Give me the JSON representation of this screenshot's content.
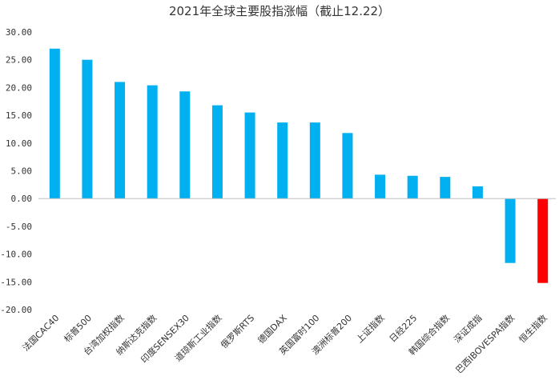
{
  "chart_data": {
    "type": "bar",
    "title": "2021年全球主要股指涨幅（截止12.22）",
    "categories": [
      "法国CAC40",
      "标普500",
      "台湾加权指数",
      "纳斯达克指数",
      "印度SENSEX30",
      "道琼斯工业指数",
      "俄罗斯RTS",
      "德国DAX",
      "英国富时100",
      "澳洲标普200",
      "上证指数",
      "日经225",
      "韩国综合指数",
      "深证成指",
      "巴西IBOVESPA指数",
      "恒生指数"
    ],
    "values": [
      27.0,
      25.0,
      21.0,
      20.4,
      19.3,
      16.8,
      15.5,
      13.7,
      13.7,
      11.8,
      4.3,
      4.1,
      3.9,
      2.2,
      -11.6,
      -15.2
    ],
    "yticks": [
      "30.00",
      "25.00",
      "20.00",
      "15.00",
      "10.00",
      "5.00",
      "0.00",
      "-5.00",
      "-10.00",
      "-15.00",
      "-20.00"
    ],
    "ylim": [
      -20,
      30
    ],
    "grid": false,
    "colors": {
      "positive": "#00B0F0",
      "negative": "#FF0000",
      "highlight_index": 15
    }
  }
}
